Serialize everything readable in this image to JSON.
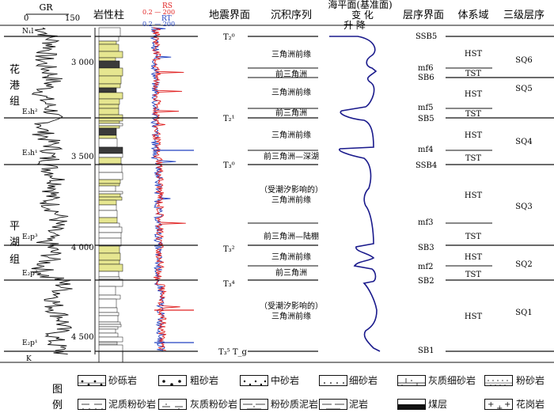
{
  "headers": {
    "gr": "GR",
    "gr_min": "0",
    "gr_max": "150",
    "lithology": "岩性柱",
    "rs": "RS",
    "rs_range": "0.2 — 200",
    "rt": "RT",
    "rt_range": "0.2 — 200",
    "seismic": "地震界面",
    "sequence": "沉积序列",
    "sea_level_title": "海平面(基准面)",
    "sea_level_change": "变  化",
    "sea_level_dirs": "升    降",
    "sequence_boundary": "层序界面",
    "systems_tract": "体系域",
    "third_order": "三级层序"
  },
  "formations": {
    "huagang": [
      "花",
      "港",
      "组"
    ],
    "pinghu": [
      "平",
      "湖",
      "组"
    ],
    "units": [
      "N₁l",
      "E₃h²",
      "E₃h¹",
      "E₂p³",
      "E₂p²",
      "E₂p¹",
      "K"
    ]
  },
  "depth_ticks": [
    "3 000",
    "3 500",
    "4 000",
    "4 500"
  ],
  "seismic_labels": [
    "T₂⁰",
    "T₂¹",
    "T₃⁰",
    "T₃²",
    "T₃⁴",
    "T₃⁵ T_g"
  ],
  "sediment_labels": [
    "三角洲前缘",
    "前三角洲",
    "三角洲前缘",
    "前三角洲",
    "三角洲前缘",
    "前三角洲—深湖",
    "（受潮汐影响的）",
    "三角洲前缘",
    "前三角洲—陆棚",
    "三角洲前缘",
    "前三角洲",
    "（受潮汐影响的）",
    "三角洲前缘"
  ],
  "boundaries": [
    "SSB5",
    "mf6",
    "SB6",
    "mf5",
    "SB5",
    "mf4",
    "SSB4",
    "mf3",
    "SB3",
    "mf2",
    "SB2",
    "SB1"
  ],
  "tracts": [
    "HST",
    "TST",
    "HST",
    "TST",
    "HST",
    "TST",
    "HST",
    "TST",
    "HST",
    "TST",
    "HST"
  ],
  "sequences": [
    "SQ6",
    "SQ5",
    "SQ4",
    "SQ3",
    "SQ2",
    "SQ1"
  ],
  "legend": {
    "title_chars": [
      "图",
      "例"
    ],
    "items": [
      "砂砾岩",
      "粗砂岩",
      "中砂岩",
      "细砂岩",
      "灰质细砂岩",
      "粉砂岩",
      "泥质粉砂岩",
      "灰质粉砂岩",
      "粉砂质泥岩",
      "泥岩",
      "煤层",
      "花岗岩"
    ]
  },
  "colors": {
    "rs": "#e02020",
    "rt": "#2040c0",
    "sea_level_curve": "#1a1a8c",
    "sandstone_fill": "#e6e690",
    "coal": "#111111"
  }
}
